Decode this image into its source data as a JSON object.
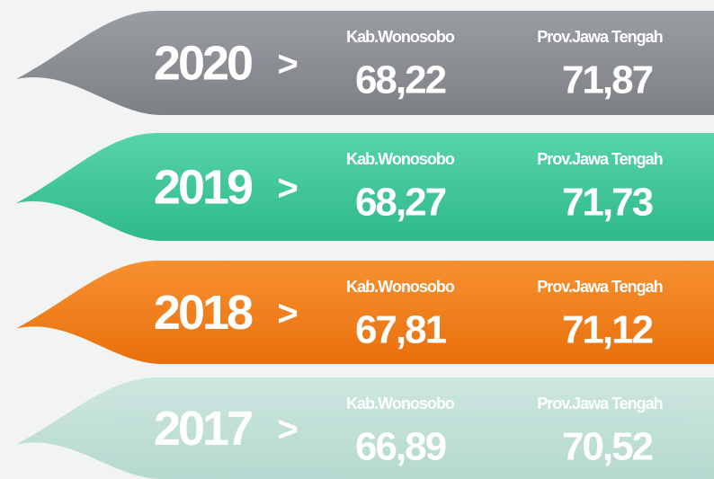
{
  "rows": [
    {
      "year": "2020",
      "separator": ">",
      "left_label": "Kab.Wonosobo",
      "left_value": "68,22",
      "right_label": "Prov.Jawa Tengah",
      "right_value": "71,87"
    },
    {
      "year": "2019",
      "separator": ">",
      "left_label": "Kab.Wonosobo",
      "left_value": "68,27",
      "right_label": "Prov.Jawa Tengah",
      "right_value": "71,73"
    },
    {
      "year": "2018",
      "separator": ">",
      "left_label": "Kab.Wonosobo",
      "left_value": "67,81",
      "right_label": "Prov.Jawa Tengah",
      "right_value": "71,12"
    },
    {
      "year": "2017",
      "separator": ">",
      "left_label": "Kab.Wonosobo",
      "left_value": "66,89",
      "right_label": "Prov.Jawa Tengah",
      "right_value": "70,52"
    }
  ]
}
